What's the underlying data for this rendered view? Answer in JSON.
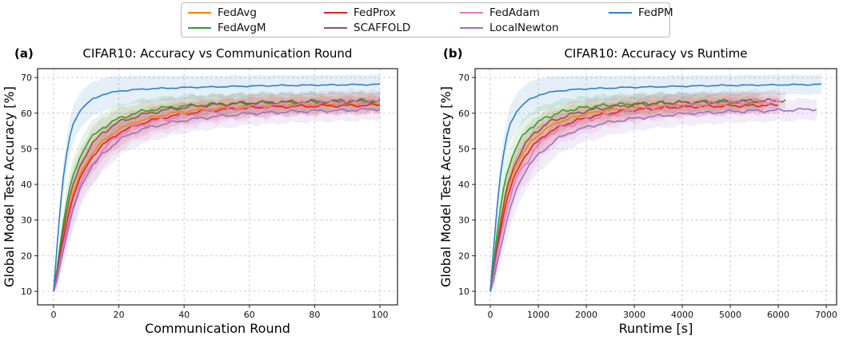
{
  "figure": {
    "ylabel": "Global Model Test Accuracy [%]",
    "legend": {
      "items": [
        {
          "label": "FedAvg"
        },
        {
          "label": "FedAvgM"
        },
        {
          "label": "FedProx"
        },
        {
          "label": "SCAFFOLD"
        },
        {
          "label": "FedAdam"
        },
        {
          "label": "LocalNewton"
        },
        {
          "label": "FedPM"
        }
      ]
    },
    "panels": [
      {
        "tag": "(a)",
        "title": "CIFAR10: Accuracy vs Communication Round",
        "xlabel": "Communication Round"
      },
      {
        "tag": "(b)",
        "title": "CIFAR10: Accuracy vs Runtime",
        "xlabel": "Runtime [s]"
      }
    ]
  },
  "chart_data": {
    "type": "line",
    "title_a": "CIFAR10: Accuracy vs Communication Round",
    "title_b": "CIFAR10: Accuracy vs Runtime",
    "ylabel": "Global Model Test Accuracy [%]",
    "xlabel_a": "Communication Round",
    "xlabel_b": "Runtime [s]",
    "ylim": [
      6.2,
      72.5
    ],
    "yticks": [
      10,
      20,
      30,
      40,
      50,
      60,
      70
    ],
    "xticks_round": [
      0,
      20,
      40,
      60,
      80,
      100
    ],
    "xticks_runtime": [
      0,
      1000,
      2000,
      3000,
      4000,
      5000,
      6000,
      7000
    ],
    "grid": "dashed",
    "legend_position": "top-center-outside",
    "rounds": [
      0,
      1,
      2,
      3,
      4,
      5,
      6,
      8,
      10,
      12,
      15,
      20,
      25,
      30,
      35,
      40,
      45,
      50,
      55,
      60,
      65,
      70,
      75,
      80,
      85,
      90,
      95,
      100
    ],
    "band_halfwidth": [
      0.5,
      2,
      3,
      3.8,
      4.2,
      4.5,
      4.6,
      4.6,
      4.5,
      4.4,
      4.2,
      3.8,
      3.5,
      3.3,
      3.1,
      3.0,
      2.9,
      2.8,
      2.8,
      2.7,
      2.7,
      2.6,
      2.6,
      2.6,
      2.5,
      2.5,
      2.5,
      2.5
    ],
    "series": [
      {
        "name": "FedAvg",
        "color": "#ff7f0e",
        "sec_per_round": 57,
        "wiggle": 0.45,
        "band_scale": 1.0,
        "values": [
          10,
          14.5,
          20,
          25,
          29.5,
          34,
          37.5,
          42.5,
          46,
          49,
          52,
          55.5,
          57.5,
          58.8,
          59.8,
          60.5,
          61,
          61.4,
          61.7,
          62.0,
          62.2,
          62.3,
          62.4,
          62.5,
          62.6,
          62.7,
          62.7,
          62.8
        ]
      },
      {
        "name": "FedAvgM",
        "color": "#2ca02c",
        "sec_per_round": 56,
        "wiggle": 0.6,
        "band_scale": 1.0,
        "values": [
          10,
          16,
          23,
          29,
          34.5,
          39,
          42.5,
          47.5,
          51,
          53.5,
          56,
          58.5,
          60,
          61,
          61.6,
          62,
          62.3,
          62.5,
          62.6,
          62.8,
          62.9,
          63.0,
          63.0,
          63.1,
          63.1,
          63.2,
          63.2,
          63.3
        ]
      },
      {
        "name": "FedProx",
        "color": "#e3211f",
        "sec_per_round": 60,
        "wiggle": 0.45,
        "band_scale": 1.0,
        "values": [
          10,
          14,
          19.5,
          24.5,
          29,
          33,
          36.5,
          41.5,
          45,
          48,
          51,
          54.5,
          56.5,
          58,
          59,
          59.8,
          60.4,
          60.9,
          61.2,
          61.5,
          61.7,
          61.8,
          61.9,
          62.0,
          62.1,
          62.1,
          62.2,
          62.3
        ]
      },
      {
        "name": "SCAFFOLD",
        "color": "#8c564b",
        "sec_per_round": 61.5,
        "wiggle": 0.6,
        "band_scale": 1.0,
        "values": [
          10,
          15,
          21.5,
          27,
          32,
          36.5,
          40,
          45,
          48.5,
          51.5,
          54.5,
          57.5,
          59,
          60.2,
          61,
          61.6,
          62.1,
          62.4,
          62.7,
          62.9,
          63.0,
          63.1,
          63.2,
          63.3,
          63.4,
          63.5,
          63.5,
          63.6
        ]
      },
      {
        "name": "FedAdam",
        "color": "#e377c2",
        "sec_per_round": 60.5,
        "wiggle": 0.9,
        "band_scale": 1.2,
        "values": [
          10,
          13.5,
          18.5,
          23,
          27,
          30.5,
          34,
          39.5,
          43.5,
          45.5,
          49.5,
          54,
          56,
          57.5,
          58.5,
          59.4,
          60.1,
          60.7,
          61.2,
          61.6,
          62.0,
          62.3,
          62.5,
          62.8,
          63.0,
          63.2,
          63.3,
          63.0
        ]
      },
      {
        "name": "LocalNewton",
        "color": "#9a6fc9",
        "sec_per_round": 68,
        "wiggle": 0.5,
        "band_scale": 1.2,
        "values": [
          10,
          13,
          17.5,
          21.5,
          25.5,
          29.5,
          33,
          38.5,
          42.5,
          45.5,
          48.5,
          52.5,
          54.8,
          56.2,
          57.2,
          58,
          58.6,
          59.1,
          59.5,
          59.9,
          60.1,
          60.3,
          60.5,
          60.6,
          60.7,
          60.8,
          61.0,
          61.2
        ]
      },
      {
        "name": "FedPM",
        "color": "#2e80c6",
        "sec_per_round": 69,
        "wiggle": 0.2,
        "band_scale": 1.1,
        "values": [
          10,
          22,
          33,
          42,
          48.5,
          53.5,
          57,
          60.5,
          62.5,
          64,
          65.2,
          66.2,
          66.6,
          66.9,
          67.0,
          67.2,
          67.3,
          67.4,
          67.5,
          67.6,
          67.7,
          67.8,
          67.8,
          67.9,
          67.9,
          68.0,
          68.0,
          68.1
        ]
      }
    ]
  }
}
